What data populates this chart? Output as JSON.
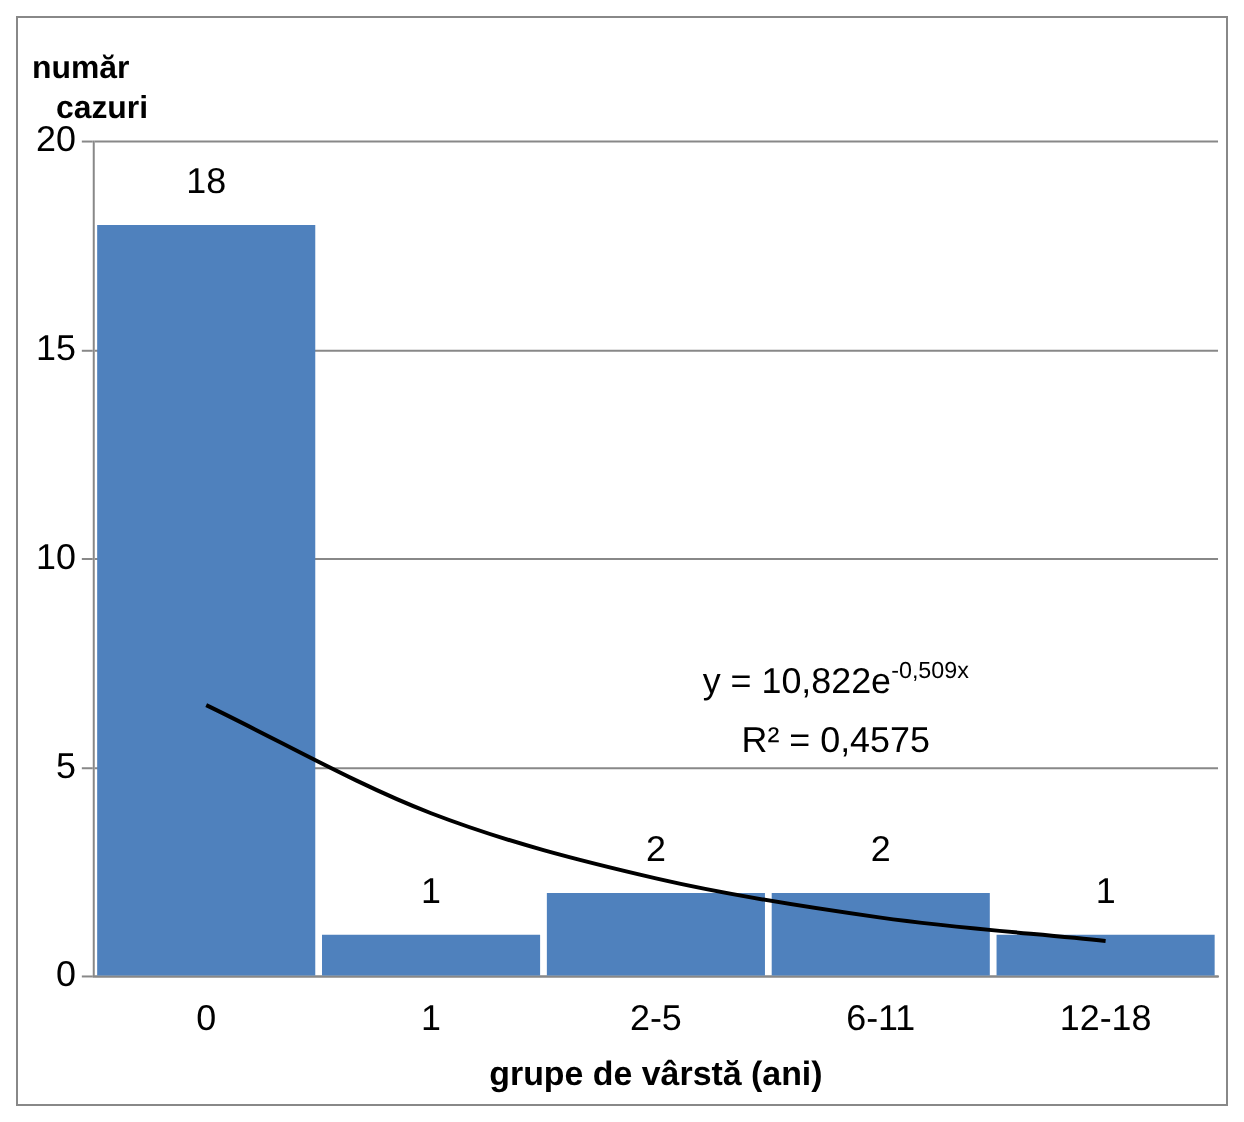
{
  "chart_data": {
    "type": "bar",
    "xlabel": "grupe de vârstă (ani)",
    "ylabel": "număr cazuri",
    "categories": [
      "0",
      "1",
      "2-5",
      "6-11",
      "12-18"
    ],
    "series": [
      {
        "color": "#4f81bd",
        "values": [
          18,
          1,
          2,
          2,
          1
        ],
        "value_labels": [
          "18",
          "1",
          "2",
          "2",
          "1"
        ]
      },
      {
        "type": "line",
        "color": "#000000",
        "values": [
          6.5,
          3.91,
          2.35,
          1.41,
          0.85
        ],
        "marker": "none"
      }
    ],
    "ylim": [
      0,
      20
    ],
    "yticks": [
      0,
      5,
      10,
      15,
      20
    ],
    "grid": "y",
    "legend": false,
    "annotations": [
      "y = 10,822e$^{-0,509x}$",
      "R² = 0,4575"
    ]
  }
}
